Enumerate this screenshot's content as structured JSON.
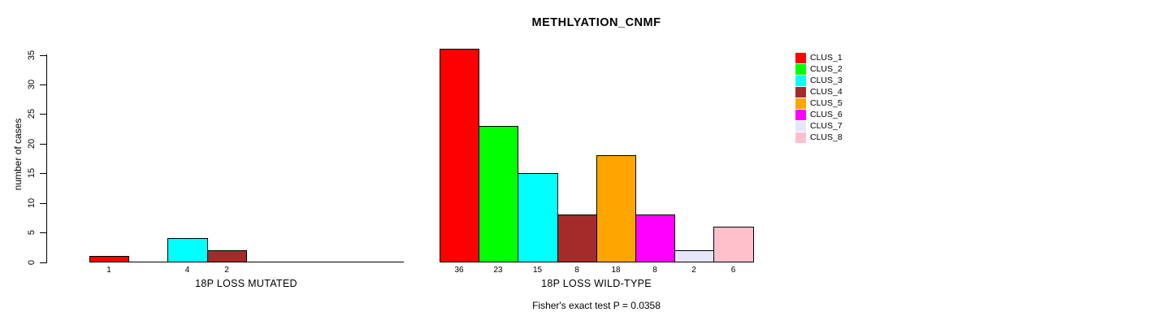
{
  "page": {
    "background": "#FFFFFF",
    "title": "METHLYATION_CNMF",
    "footer_annotation": "Fisher's exact test P = 0.0358"
  },
  "legend": {
    "position": "right",
    "items": [
      {
        "label": "CLUS_1",
        "color": "#FF0000"
      },
      {
        "label": "CLUS_2",
        "color": "#00FF00"
      },
      {
        "label": "CLUS_3",
        "color": "#00FFFF"
      },
      {
        "label": "CLUS_4",
        "color": "#A52A2A"
      },
      {
        "label": "CLUS_5",
        "color": "#FFA500"
      },
      {
        "label": "CLUS_6",
        "color": "#FF00FF"
      },
      {
        "label": "CLUS_7",
        "color": "#E6E6FA"
      },
      {
        "label": "CLUS_8",
        "color": "#FFC0CB"
      }
    ]
  },
  "chart_data": {
    "type": "bar",
    "title": "METHLYATION_CNMF",
    "xlabel": "",
    "ylabel": "number of cases",
    "ylim": [
      0,
      35
    ],
    "yticks": [
      0,
      5,
      10,
      15,
      20,
      25,
      30,
      35
    ],
    "y_tick_labels_rotated": true,
    "grid": false,
    "legend_position": "right",
    "categories": [
      "CLUS_1",
      "CLUS_2",
      "CLUS_3",
      "CLUS_4",
      "CLUS_5",
      "CLUS_6",
      "CLUS_7",
      "CLUS_8"
    ],
    "colors": [
      "#FF0000",
      "#00FF00",
      "#00FFFF",
      "#A52A2A",
      "#FFA500",
      "#FF00FF",
      "#E6E6FA",
      "#FFC0CB"
    ],
    "groups": [
      {
        "label": "18P LOSS MUTATED",
        "values": [
          1,
          0,
          4,
          2,
          0,
          0,
          0,
          0
        ]
      },
      {
        "label": "18P LOSS WILD-TYPE",
        "values": [
          36,
          23,
          15,
          8,
          18,
          8,
          2,
          6
        ]
      }
    ],
    "bar_value_labels": "shown below axis for non-zero bars only",
    "annotation": "Fisher's exact test P = 0.0358"
  }
}
